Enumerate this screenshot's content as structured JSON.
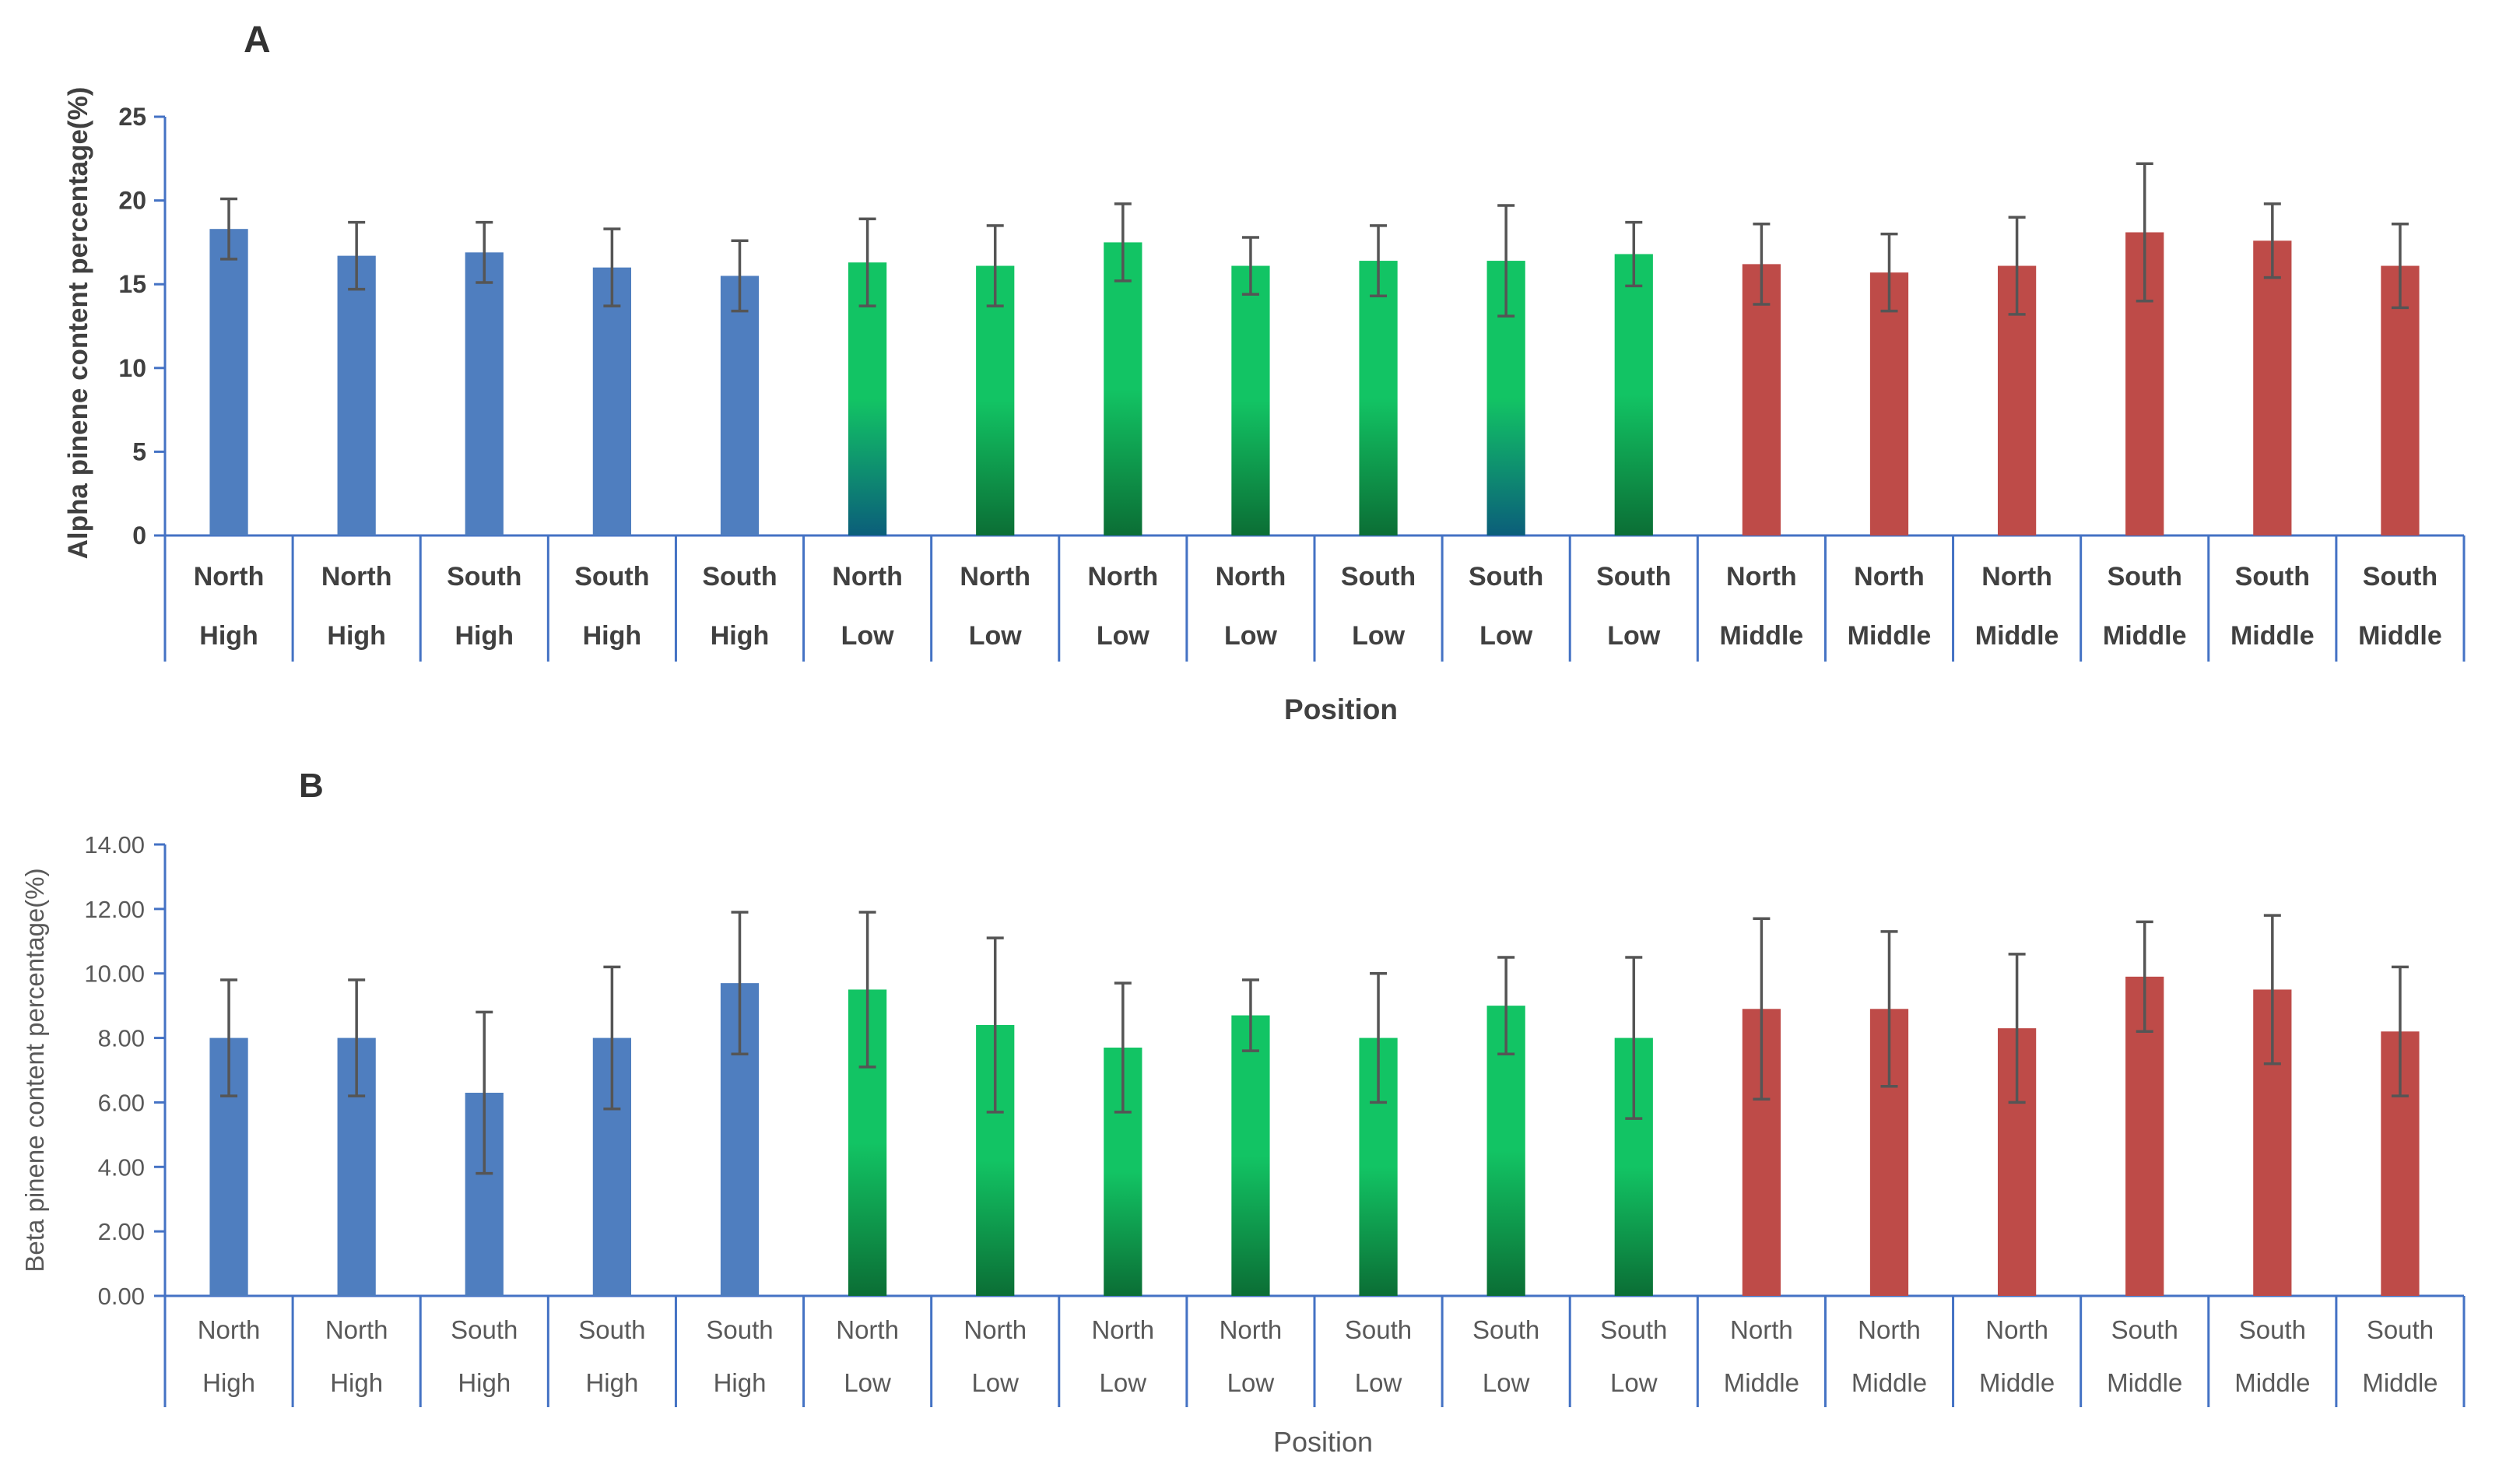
{
  "chart_data": [
    {
      "panel_label": "A",
      "type": "bar",
      "ylabel": "Alpha pinene content percentage(%)",
      "xlabel": "Position",
      "ylim": [
        0,
        25
      ],
      "yticks": [
        "0",
        "5",
        "10",
        "15",
        "20",
        "25"
      ],
      "category_lines": [
        [
          "North",
          "High"
        ],
        [
          "North",
          "High"
        ],
        [
          "South",
          "High"
        ],
        [
          "South",
          "High"
        ],
        [
          "South",
          "High"
        ],
        [
          "North",
          "Low"
        ],
        [
          "North",
          "Low"
        ],
        [
          "North",
          "Low"
        ],
        [
          "North",
          "Low"
        ],
        [
          "South",
          "Low"
        ],
        [
          "South",
          "Low"
        ],
        [
          "South",
          "Low"
        ],
        [
          "North",
          "Middle"
        ],
        [
          "North",
          "Middle"
        ],
        [
          "North",
          "Middle"
        ],
        [
          "South",
          "Middle"
        ],
        [
          "South",
          "Middle"
        ],
        [
          "South",
          "Middle"
        ]
      ],
      "values": [
        18.3,
        16.7,
        16.9,
        16.0,
        15.5,
        16.3,
        16.1,
        17.5,
        16.1,
        16.4,
        16.4,
        16.8,
        16.2,
        15.7,
        16.1,
        18.1,
        17.6,
        16.1
      ],
      "errors": [
        1.8,
        2.0,
        1.8,
        2.3,
        2.1,
        2.6,
        2.4,
        2.3,
        1.7,
        2.1,
        3.3,
        1.9,
        2.4,
        2.3,
        2.9,
        4.1,
        2.2,
        2.5
      ],
      "bar_styles": [
        "blue",
        "blue",
        "blue",
        "blue",
        "blue",
        "teal",
        "dkgreen",
        "dkgreen",
        "dkgreen",
        "dkgreen",
        "teal",
        "dkgreen",
        "red",
        "red",
        "red",
        "red",
        "red",
        "red"
      ]
    },
    {
      "panel_label": "B",
      "type": "bar",
      "ylabel": "Beta pinene content percentage(%)",
      "xlabel": "Position",
      "ylim": [
        0,
        14
      ],
      "yticks": [
        "0.00",
        "2.00",
        "4.00",
        "6.00",
        "8.00",
        "10.00",
        "12.00",
        "14.00"
      ],
      "category_lines": [
        [
          "North",
          "High"
        ],
        [
          "North",
          "High"
        ],
        [
          "South",
          "High"
        ],
        [
          "South",
          "High"
        ],
        [
          "South",
          "High"
        ],
        [
          "North",
          "Low"
        ],
        [
          "North",
          "Low"
        ],
        [
          "North",
          "Low"
        ],
        [
          "North",
          "Low"
        ],
        [
          "South",
          "Low"
        ],
        [
          "South",
          "Low"
        ],
        [
          "South",
          "Low"
        ],
        [
          "North",
          "Middle"
        ],
        [
          "North",
          "Middle"
        ],
        [
          "North",
          "Middle"
        ],
        [
          "South",
          "Middle"
        ],
        [
          "South",
          "Middle"
        ],
        [
          "South",
          "Middle"
        ]
      ],
      "values": [
        8.0,
        8.0,
        6.3,
        8.0,
        9.7,
        9.5,
        8.4,
        7.7,
        8.7,
        8.0,
        9.0,
        8.0,
        8.9,
        8.9,
        8.3,
        9.9,
        9.5,
        8.2
      ],
      "errors": [
        1.8,
        1.8,
        2.5,
        2.2,
        2.2,
        2.4,
        2.7,
        2.0,
        1.1,
        2.0,
        1.5,
        2.5,
        2.8,
        2.4,
        2.3,
        1.7,
        2.3,
        2.0
      ],
      "bar_styles": [
        "blue",
        "blue",
        "blue",
        "blue",
        "blue",
        "dkgreen",
        "dkgreen",
        "dkgreen",
        "dkgreen",
        "dkgreen",
        "dkgreen",
        "dkgreen",
        "red",
        "red",
        "red",
        "red",
        "red",
        "red"
      ]
    }
  ],
  "colors": {
    "blue": "#4F7EBF",
    "red": "#BE4B48",
    "green_top": "#12C464",
    "green_bottom": "#0B6E35",
    "teal_bottom": "#0B5E7A",
    "axis": "#4472C4",
    "error_bar": "#555555"
  }
}
